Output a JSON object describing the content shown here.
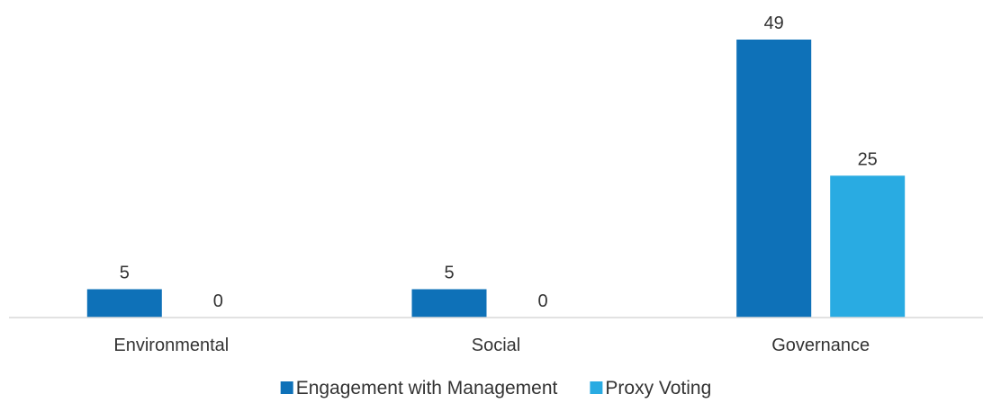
{
  "chart_data": {
    "type": "bar",
    "title": "",
    "xlabel": "",
    "ylabel": "",
    "ylim": [
      0,
      49
    ],
    "grid": false,
    "legend_position": "bottom",
    "categories": [
      "Environmental",
      "Social",
      "Governance"
    ],
    "series": [
      {
        "name": "Engagement with Management",
        "color": "#0e71b8",
        "values": [
          5,
          5,
          49
        ]
      },
      {
        "name": "Proxy Voting",
        "color": "#29abe2",
        "values": [
          0,
          0,
          25
        ]
      }
    ]
  }
}
